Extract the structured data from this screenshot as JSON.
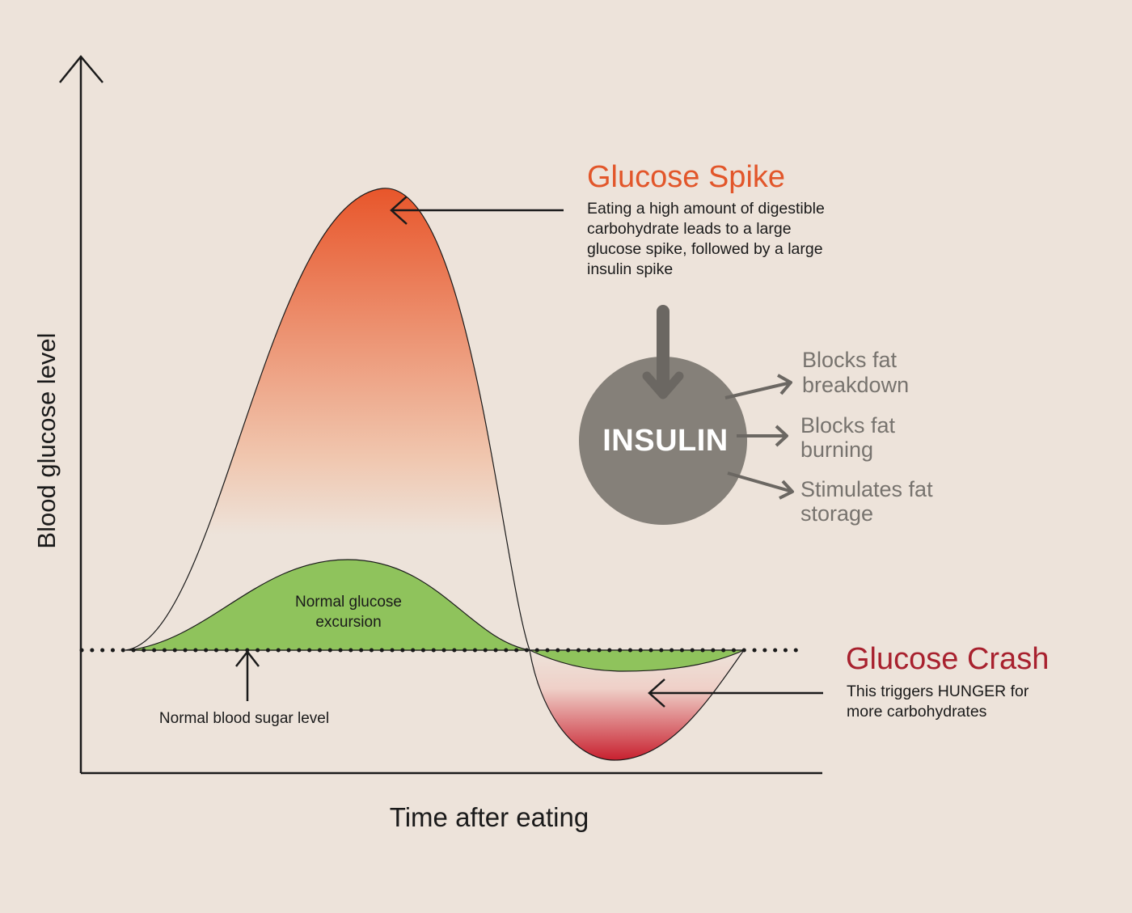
{
  "axes": {
    "y_label": "Blood glucose level",
    "x_label": "Time after eating"
  },
  "spike": {
    "title": "Glucose Spike",
    "description": [
      "Eating a high amount of digestible",
      "carbohydrate leads to a large",
      "glucose spike, followed by a large",
      "insulin spike"
    ]
  },
  "insulin": {
    "label": "INSULIN",
    "effects": [
      [
        "Blocks fat",
        "breakdown"
      ],
      [
        "Blocks fat",
        "burning"
      ],
      [
        "Stimulates fat",
        "storage"
      ]
    ]
  },
  "normal_excursion": {
    "label": [
      "Normal glucose",
      "excursion"
    ]
  },
  "baseline": {
    "label": "Normal blood sugar level"
  },
  "crash": {
    "title": "Glucose Crash",
    "description": [
      "This triggers HUNGER for",
      "more carbohydrates"
    ]
  },
  "colors": {
    "background": "#ede3da",
    "spike_top": "#e8562b",
    "crash_bottom": "#c8202f",
    "normal_green": "#8fc35c",
    "insulin_circle": "#858079",
    "effect_text": "#77736e",
    "spike_title": "#e2562a",
    "crash_title": "#a8212e"
  }
}
